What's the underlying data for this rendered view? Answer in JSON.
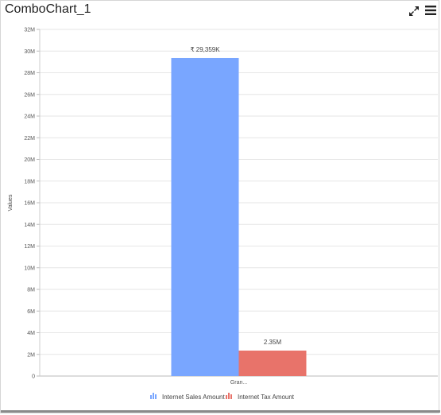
{
  "widget": {
    "title": "ComboChart_1",
    "icons": {
      "expand": "expand-icon",
      "menu": "hamburger-menu-icon"
    }
  },
  "chart_data": {
    "type": "bar",
    "categories": [
      "Gran..."
    ],
    "series": [
      {
        "name": "Internet Sales Amount",
        "values": [
          29359000
        ],
        "data_label": "₹ 29,359K",
        "color": "#79a6ff"
      },
      {
        "name": "Internet Tax Amount",
        "values": [
          2350000
        ],
        "data_label": "2.35M",
        "color": "#e8736a"
      }
    ],
    "ylabel": "Values",
    "xlabel": "",
    "ylim": [
      0,
      32000000
    ],
    "yticks": [
      0,
      2000000,
      4000000,
      6000000,
      8000000,
      10000000,
      12000000,
      14000000,
      16000000,
      18000000,
      20000000,
      22000000,
      24000000,
      26000000,
      28000000,
      30000000,
      32000000
    ],
    "ytick_labels": [
      "0",
      "2M",
      "4M",
      "6M",
      "8M",
      "10M",
      "12M",
      "14M",
      "16M",
      "18M",
      "20M",
      "22M",
      "24M",
      "26M",
      "28M",
      "30M",
      "32M"
    ],
    "grid": true,
    "legend_position": "bottom"
  }
}
